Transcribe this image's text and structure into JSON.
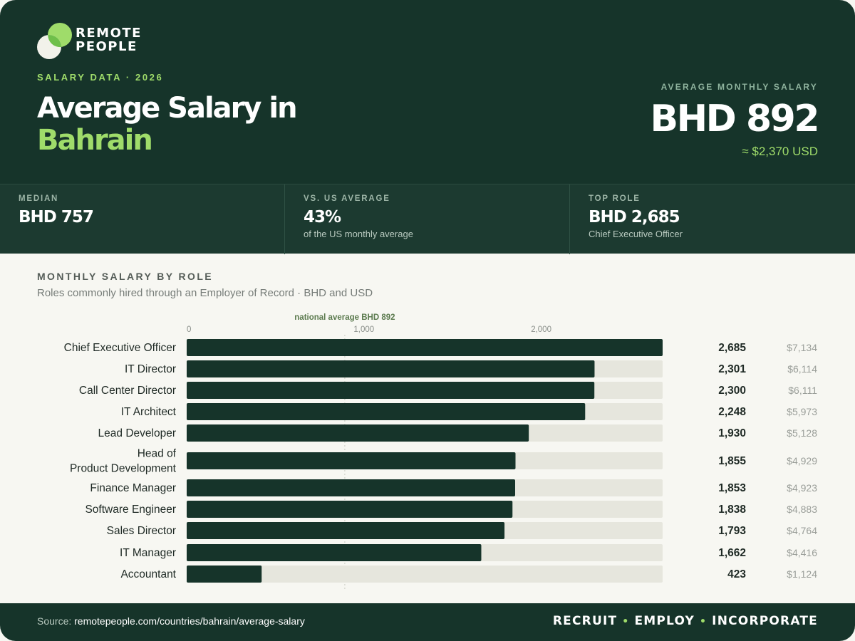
{
  "brand": {
    "line1": "REMOTE",
    "line2": "PEOPLE"
  },
  "header": {
    "kicker": "SALARY DATA · 2026",
    "title_line1": "Average Salary in",
    "title_line2": "Bahrain",
    "avg_label": "AVERAGE MONTHLY SALARY",
    "avg_value": "BHD 892",
    "avg_usd": "≈ $2,370 USD"
  },
  "stats": [
    {
      "label": "MEDIAN",
      "value": "BHD 757",
      "sub": ""
    },
    {
      "label": "VS. US AVERAGE",
      "value": "43%",
      "sub": "of the US monthly average"
    },
    {
      "label": "TOP ROLE",
      "value": "BHD 2,685",
      "sub": "Chief Executive Officer"
    }
  ],
  "section": {
    "title": "MONTHLY SALARY BY ROLE",
    "subtitle": "Roles commonly hired through an Employer of Record · BHD and USD"
  },
  "chart_data": {
    "type": "bar",
    "orientation": "horizontal",
    "categories": [
      "Chief Executive Officer",
      "IT Director",
      "Call Center Director",
      "IT Architect",
      "Lead Developer",
      "Head of Product Development",
      "Finance Manager",
      "Software Engineer",
      "Sales Director",
      "IT Manager",
      "Accountant"
    ],
    "values": [
      2685,
      2301,
      2300,
      2248,
      1930,
      1855,
      1853,
      1838,
      1793,
      1662,
      423
    ],
    "value_labels": [
      "2,685",
      "2,301",
      "2,300",
      "2,248",
      "1,930",
      "1,855",
      "1,853",
      "1,838",
      "1,793",
      "1,662",
      "423"
    ],
    "usd_labels": [
      "$7,134",
      "$6,114",
      "$6,111",
      "$5,973",
      "$5,128",
      "$4,929",
      "$4,923",
      "$4,883",
      "$4,764",
      "$4,416",
      "$1,124"
    ],
    "xlim": [
      0,
      2685
    ],
    "ticks": [
      0,
      1000,
      2000
    ],
    "tick_labels": [
      "0",
      "1,000",
      "2,000"
    ],
    "reference": {
      "value": 892,
      "label": "national average BHD 892"
    },
    "colors": {
      "bar": "#16342a",
      "track": "#e6e6dd",
      "reference": "#5b7a4e"
    }
  },
  "footer": {
    "source_prefix": "Source:",
    "source_url": "remotepeople.com/countries/bahrain/average-salary",
    "tagline": [
      "RECRUIT",
      "EMPLOY",
      "INCORPORATE"
    ]
  },
  "colors": {
    "dark": "#16342a",
    "accent": "#9fdc6a",
    "background": "#f7f7f2"
  }
}
